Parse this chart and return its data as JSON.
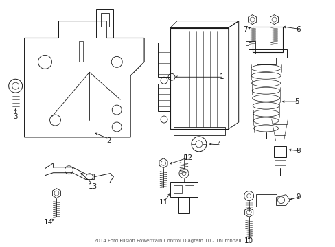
{
  "bg_color": "#ffffff",
  "line_color": "#1a1a1a",
  "fig_width": 4.89,
  "fig_height": 3.6,
  "dpi": 100,
  "title": "2014 Ford Fusion Powertrain Control Diagram 10 - Thumbnail"
}
